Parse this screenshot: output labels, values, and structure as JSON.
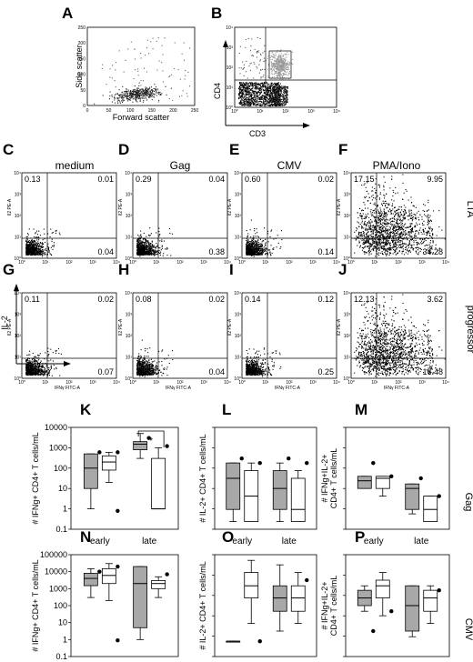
{
  "panel_letters": [
    "A",
    "B",
    "C",
    "D",
    "E",
    "F",
    "G",
    "H",
    "I",
    "J",
    "K",
    "L",
    "M",
    "N",
    "O",
    "P"
  ],
  "scatter_panels": {
    "A": {
      "ylabel": "Side scatter",
      "xlabel": "Forward scatter",
      "xticks": [
        "0",
        "50",
        "100",
        "150",
        "200",
        "250"
      ],
      "yticks": [
        "0",
        "50",
        "100",
        "150",
        "200",
        "250"
      ]
    },
    "B": {
      "ylabel": "CD4",
      "xlabel": "CD3",
      "xticks": [
        "10⁰",
        "10¹",
        "10²",
        "10³",
        "10⁴"
      ],
      "yticks": [
        "10⁰",
        "10¹",
        "10²",
        "10³",
        "10⁴"
      ]
    }
  },
  "flow_grid": {
    "columns": [
      "medium",
      "Gag",
      "CMV",
      "PMA/Iono"
    ],
    "rows": [
      "LTA",
      "progressor"
    ],
    "ylabel_axis": "IL-2",
    "xlabel_axis": "IFNγ",
    "tiny_ylabel": "Il2 PE-A",
    "tiny_xlabel": "IFNγ FITC-A",
    "panels": [
      {
        "letter": "C",
        "ul": "0.13",
        "ur": "0.01",
        "lr": "0.04"
      },
      {
        "letter": "D",
        "ul": "0.29",
        "ur": "0.04",
        "lr": "0.38"
      },
      {
        "letter": "E",
        "ul": "0.60",
        "ur": "0.02",
        "lr": "0.14"
      },
      {
        "letter": "F",
        "ul": "17.15",
        "ur": "9.95",
        "lr": "34.28"
      },
      {
        "letter": "G",
        "ul": "0.11",
        "ur": "0.02",
        "lr": "0.07"
      },
      {
        "letter": "H",
        "ul": "0.08",
        "ur": "0.02",
        "lr": "0.04"
      },
      {
        "letter": "I",
        "ul": "0.14",
        "ur": "0.12",
        "lr": "0.25"
      },
      {
        "letter": "J",
        "ul": "12.13",
        "ur": "3.62",
        "lr": "16.48"
      }
    ]
  },
  "chart_data": [
    {
      "type": "box",
      "panel": "K",
      "row": "Gag",
      "ylabel": "# IFNg+ CD4+ T cells/mL",
      "yscale": "log",
      "ylim": [
        0.1,
        10000
      ],
      "yticks": [
        "0.1",
        "1",
        "10",
        "100",
        "1000",
        "10000"
      ],
      "categories": [
        "early",
        "late"
      ],
      "series": [
        {
          "fill": "#a8a8a8",
          "values": [
            {
              "min": 1,
              "q1": 10,
              "median": 100,
              "q3": 500,
              "max": 500,
              "points": [
                600
              ]
            },
            {
              "min": 300,
              "q1": 800,
              "median": 1500,
              "q3": 2000,
              "max": 5000,
              "points": [
                3000
              ]
            }
          ]
        },
        {
          "fill": "#ffffff",
          "values": [
            {
              "min": 20,
              "q1": 80,
              "median": 200,
              "q3": 400,
              "max": 600,
              "points": [
                0.8,
                600
              ]
            },
            {
              "min": 1,
              "q1": 1,
              "median": 1,
              "q3": 300,
              "max": 1000,
              "points": [
                1200
              ]
            }
          ]
        }
      ],
      "annotation": "*"
    },
    {
      "type": "box",
      "panel": "L",
      "row": "Gag",
      "ylabel": "# IL-2+ CD4+ T cells/mL",
      "yscale": "log",
      "categories": [
        "early",
        "late"
      ],
      "series": [
        {
          "fill": "#a8a8a8",
          "values": [
            {
              "min": 1,
              "q1": 3,
              "median": 50,
              "q3": 200,
              "max": 200,
              "points": [
                300
              ]
            },
            {
              "min": 1,
              "q1": 3,
              "median": 20,
              "q3": 100,
              "max": 200,
              "points": [
                300
              ]
            }
          ]
        },
        {
          "fill": "#ffffff",
          "values": [
            {
              "min": 1,
              "q1": 1,
              "median": 10,
              "q3": 100,
              "max": 200,
              "points": [
                200
              ]
            },
            {
              "min": 1,
              "q1": 1,
              "median": 3,
              "q3": 50,
              "max": 100,
              "points": [
                200
              ]
            }
          ]
        }
      ]
    },
    {
      "type": "box",
      "panel": "M",
      "row": "Gag",
      "ylabel": "# IFNg+IL-2+ CD4+ T cells/mL",
      "yscale": "log",
      "categories": [
        "early",
        "late"
      ],
      "series": [
        {
          "fill": "#a8a8a8",
          "values": [
            {
              "min": 20,
              "q1": 20,
              "median": 40,
              "q3": 60,
              "max": 60,
              "points": [
                200
              ]
            },
            {
              "min": 2,
              "q1": 3,
              "median": 20,
              "q3": 30,
              "max": 30,
              "points": [
                50
              ]
            }
          ]
        },
        {
          "fill": "#ffffff",
          "values": [
            {
              "min": 10,
              "q1": 20,
              "median": 50,
              "q3": 60,
              "max": 60,
              "points": [
                60
              ]
            },
            {
              "min": 1,
              "q1": 1,
              "median": 3,
              "q3": 10,
              "max": 10,
              "points": [
                10
              ]
            }
          ]
        }
      ]
    },
    {
      "type": "box",
      "panel": "N",
      "row": "CMV",
      "ylabel": "# IFNg+ CD4+ T cells/mL",
      "yscale": "log",
      "ylim": [
        0.1,
        100000
      ],
      "yticks": [
        "0.1",
        "1",
        "10",
        "100",
        "1000",
        "10000",
        "100000"
      ],
      "categories": [
        "early",
        "late"
      ],
      "series": [
        {
          "fill": "#a8a8a8",
          "values": [
            {
              "min": 300,
              "q1": 1500,
              "median": 4000,
              "q3": 8000,
              "max": 15000,
              "points": [
                10000
              ]
            },
            {
              "min": 1,
              "q1": 5,
              "median": 2000,
              "q3": 20000,
              "max": 20000,
              "points": []
            }
          ]
        },
        {
          "fill": "#ffffff",
          "values": [
            {
              "min": 200,
              "q1": 2000,
              "median": 6000,
              "q3": 15000,
              "max": 30000,
              "points": [
                0.9,
                20000
              ]
            },
            {
              "min": 300,
              "q1": 1000,
              "median": 2000,
              "q3": 3000,
              "max": 5000,
              "points": [
                7000
              ]
            }
          ]
        }
      ]
    },
    {
      "type": "box",
      "panel": "O",
      "row": "CMV",
      "ylabel": "# IL-2+ CD4+ T cells/mL",
      "yscale": "log",
      "categories": [
        "early",
        "late"
      ],
      "series": [
        {
          "fill": "#a8a8a8",
          "values": [
            {
              "min": 2,
              "q1": 2,
              "median": 2,
              "q3": 2,
              "max": 2,
              "points": []
            },
            {
              "min": 5,
              "q1": 30,
              "median": 100,
              "q3": 300,
              "max": 2000,
              "points": []
            }
          ]
        },
        {
          "fill": "#ffffff",
          "values": [
            {
              "min": 10,
              "q1": 100,
              "median": 300,
              "q3": 1000,
              "max": 3000,
              "points": [
                2
              ]
            },
            {
              "min": 10,
              "q1": 30,
              "median": 100,
              "q3": 300,
              "max": 1000,
              "points": [
                500
              ]
            }
          ]
        }
      ]
    },
    {
      "type": "box",
      "panel": "P",
      "row": "CMV",
      "ylabel": "# IFNg+IL-2+ CD4+ T cells/mL",
      "yscale": "log",
      "categories": [
        "early",
        "late"
      ],
      "series": [
        {
          "fill": "#a8a8a8",
          "values": [
            {
              "min": 30,
              "q1": 50,
              "median": 100,
              "q3": 200,
              "max": 300,
              "points": [
                5
              ]
            },
            {
              "min": 3,
              "q1": 5,
              "median": 50,
              "q3": 300,
              "max": 300,
              "points": []
            }
          ]
        },
        {
          "fill": "#ffffff",
          "values": [
            {
              "min": 20,
              "q1": 100,
              "median": 300,
              "q3": 500,
              "max": 1000,
              "points": [
                30
              ]
            },
            {
              "min": 10,
              "q1": 30,
              "median": 100,
              "q3": 200,
              "max": 300,
              "points": [
                200
              ]
            }
          ]
        }
      ]
    }
  ],
  "box_row_labels": [
    "Gag",
    "CMV"
  ]
}
